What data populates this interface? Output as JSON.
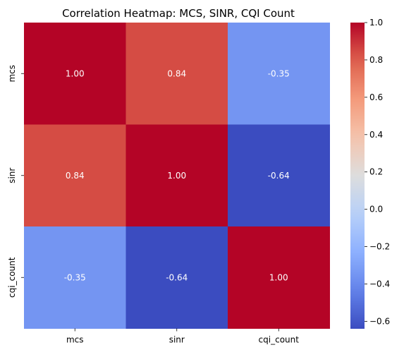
{
  "chart_data": {
    "type": "heatmap",
    "title": "Correlation Heatmap: MCS, SINR, CQI Count",
    "x_categories": [
      "mcs",
      "sinr",
      "cqi_count"
    ],
    "y_categories": [
      "mcs",
      "sinr",
      "cqi_count"
    ],
    "values": [
      [
        1.0,
        0.84,
        -0.35
      ],
      [
        0.84,
        1.0,
        -0.64
      ],
      [
        -0.35,
        -0.64,
        1.0
      ]
    ],
    "cell_labels": [
      [
        "1.00",
        "0.84",
        "-0.35"
      ],
      [
        "0.84",
        "1.00",
        "-0.64"
      ],
      [
        "-0.35",
        "-0.64",
        "1.00"
      ]
    ],
    "colormap": "coolwarm",
    "vmin": -0.64,
    "vmax": 1.0,
    "colorbar": {
      "ticks": [
        1.0,
        0.8,
        0.6,
        0.4,
        0.2,
        0.0,
        -0.2,
        -0.4,
        -0.6
      ],
      "tick_labels": [
        "1.0",
        "0.8",
        "0.6",
        "0.4",
        "0.2",
        "0.0",
        "−0.2",
        "−0.4",
        "−0.6"
      ]
    },
    "xlabel": "",
    "ylabel": ""
  }
}
